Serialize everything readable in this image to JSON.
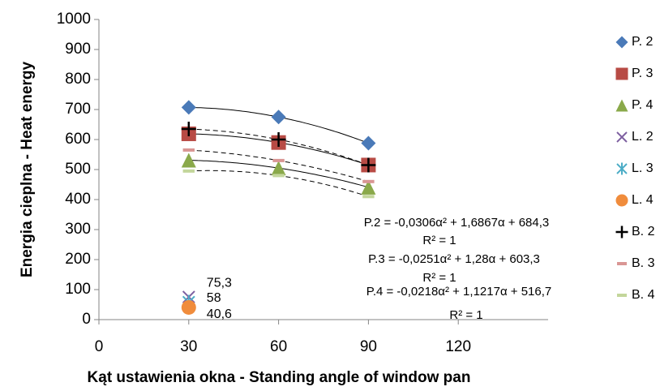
{
  "chart_data": {
    "type": "scatter",
    "x_label": "Kąt ustawienia okna - Standing angle of window pan",
    "y_label": "Energia cieplna - Heat energy",
    "xlim": [
      0,
      150
    ],
    "xticks": [
      0,
      30,
      60,
      90,
      120
    ],
    "ylim": [
      0,
      1000
    ],
    "yticks": [
      0,
      100,
      200,
      300,
      400,
      500,
      600,
      700,
      800,
      900,
      1000
    ],
    "legend": "right",
    "series": [
      {
        "name": "P. 2",
        "color": "#4a7ab8",
        "marker": "diamond",
        "trendline": "solid",
        "x": [
          30,
          60,
          90
        ],
        "values": [
          707,
          675,
          588
        ]
      },
      {
        "name": "P. 3",
        "color": "#b84b45",
        "marker": "square",
        "trendline": "solid",
        "x": [
          30,
          60,
          90
        ],
        "values": [
          619,
          590,
          515
        ]
      },
      {
        "name": "P. 4",
        "color": "#8aa94a",
        "marker": "triangle",
        "trendline": "solid",
        "x": [
          30,
          60,
          90
        ],
        "values": [
          531,
          505,
          441
        ]
      },
      {
        "name": "L. 2",
        "color": "#7d5fa0",
        "marker": "x",
        "x": [
          30
        ],
        "values": [
          75.3
        ],
        "value_labels": [
          "75,3"
        ]
      },
      {
        "name": "L. 3",
        "color": "#4bacc6",
        "marker": "asterisk",
        "x": [
          30
        ],
        "values": [
          58
        ],
        "value_labels": [
          "58"
        ]
      },
      {
        "name": "L. 4",
        "color": "#f08c3c",
        "marker": "circle",
        "x": [
          30
        ],
        "values": [
          40.6
        ],
        "value_labels": [
          "40,6"
        ]
      },
      {
        "name": "B. 2",
        "color": "#000000",
        "marker": "plus",
        "trendline": "dashed",
        "x": [
          30,
          60,
          90
        ],
        "values": [
          635,
          600,
          515
        ]
      },
      {
        "name": "B. 3",
        "color": "#d99694",
        "marker": "dash",
        "trendline": "dashed",
        "x": [
          30,
          60,
          90
        ],
        "values": [
          565,
          530,
          460
        ]
      },
      {
        "name": "B. 4",
        "color": "#c3d69b",
        "marker": "dash",
        "trendline": "dashed",
        "x": [
          30,
          60,
          90
        ],
        "values": [
          495,
          480,
          410
        ]
      }
    ],
    "annotations": [
      "P.2 = -0,0306α² + 1,6867α + 684,3",
      "R² = 1",
      "P.3 = -0,0251α² + 1,28α + 603,3",
      "R² = 1",
      "P.4 = -0,0218α² + 1,1217α + 516,7",
      "R² = 1"
    ]
  }
}
